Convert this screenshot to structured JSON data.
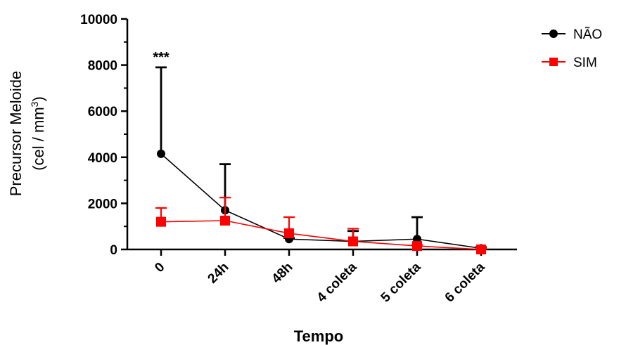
{
  "chart_data": {
    "type": "line",
    "title": "",
    "xlabel": "Tempo",
    "ylabel_line1": "Precursor Meloide",
    "ylabel_line2_prefix": "(cel / mm",
    "ylabel_line2_sup": "3",
    "ylabel_line2_suffix": ")",
    "categories": [
      "0",
      "24h",
      "48h",
      "4 coleta",
      "5 coleta",
      "6 coleta"
    ],
    "yticks": [
      "0",
      "2000",
      "4000",
      "6000",
      "8000",
      "10000"
    ],
    "ylim": [
      0,
      10000
    ],
    "grid": false,
    "legend_position": "top-right",
    "annotation": {
      "text": "***",
      "category": "0"
    },
    "series": [
      {
        "name": "NÃO",
        "color": "#000000",
        "marker": "circle",
        "values": [
          4150,
          1700,
          450,
          350,
          450,
          50
        ],
        "error_upper": [
          7900,
          3700,
          500,
          800,
          1400,
          100
        ]
      },
      {
        "name": "SIM",
        "color": "#ff0000",
        "marker": "square",
        "values": [
          1200,
          1250,
          700,
          350,
          150,
          0
        ],
        "error_upper": [
          1800,
          2250,
          1400,
          900,
          200,
          50
        ]
      }
    ]
  }
}
